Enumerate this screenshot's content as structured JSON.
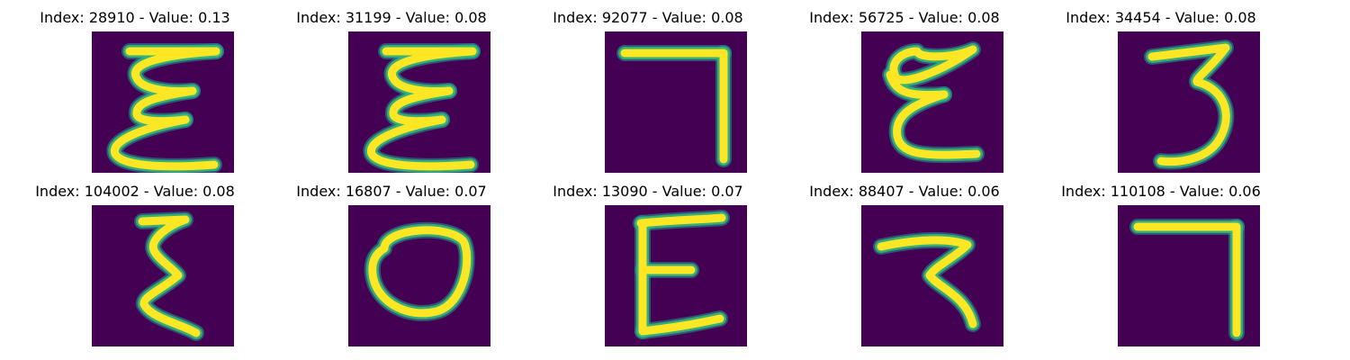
{
  "background_color": "#440154",
  "stroke_colors": {
    "core": "#fde725",
    "edge": "#35b779",
    "halo": "#21918c"
  },
  "panels": [
    {
      "title": "Index: 28910 - Value: 0.13",
      "glyph": "double-epsilon-icon"
    },
    {
      "title": "Index: 31199 - Value: 0.08",
      "glyph": "double-epsilon-icon"
    },
    {
      "title": "Index: 92077 - Value: 0.08",
      "glyph": "seven-stroke-icon"
    },
    {
      "title": "Index: 56725 - Value: 0.08",
      "glyph": "epsilon-loop-icon"
    },
    {
      "title": "Index: 34454 - Value: 0.08",
      "glyph": "three-icon"
    },
    {
      "title": "Index: 104002 - Value: 0.08",
      "glyph": "zigzag-icon"
    },
    {
      "title": "Index: 16807 - Value: 0.07",
      "glyph": "zero-icon"
    },
    {
      "title": "Index: 13090 - Value: 0.07",
      "glyph": "e-shape-icon"
    },
    {
      "title": "Index: 88407 - Value: 0.06",
      "glyph": "z-hook-icon"
    },
    {
      "title": "Index: 110108 - Value: 0.06",
      "glyph": "seven-stroke-icon"
    }
  ]
}
